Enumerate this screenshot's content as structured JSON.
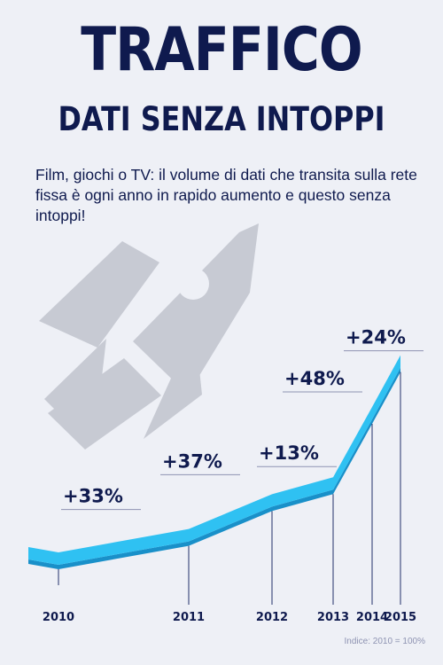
{
  "header": {
    "title": "TRAFFICO",
    "subtitle": "DATI SENZA INTOPPI",
    "description": "Film, giochi o TV: il volume di dati che transita sulla rete fissa è ogni anno in rapido aumento e questo senza intoppi!"
  },
  "footnote": "Indice: 2010 = 100%",
  "colors": {
    "navy": "#0f1a4e",
    "ribbon": "#2fc1f2",
    "ribbon_dark": "#1990c9",
    "rocket": "#c7cad3"
  },
  "icons": [
    "rocket-icon"
  ],
  "chart_data": {
    "type": "line",
    "categories": [
      "2010",
      "2011",
      "2012",
      "2013",
      "2014",
      "2015"
    ],
    "index_values": [
      100,
      133,
      182,
      206,
      305,
      378
    ],
    "growth_labels": [
      "+33%",
      "+37%",
      "+13%",
      "+48%",
      "+24%"
    ],
    "footnote": "Indice: 2010 = 100%"
  }
}
